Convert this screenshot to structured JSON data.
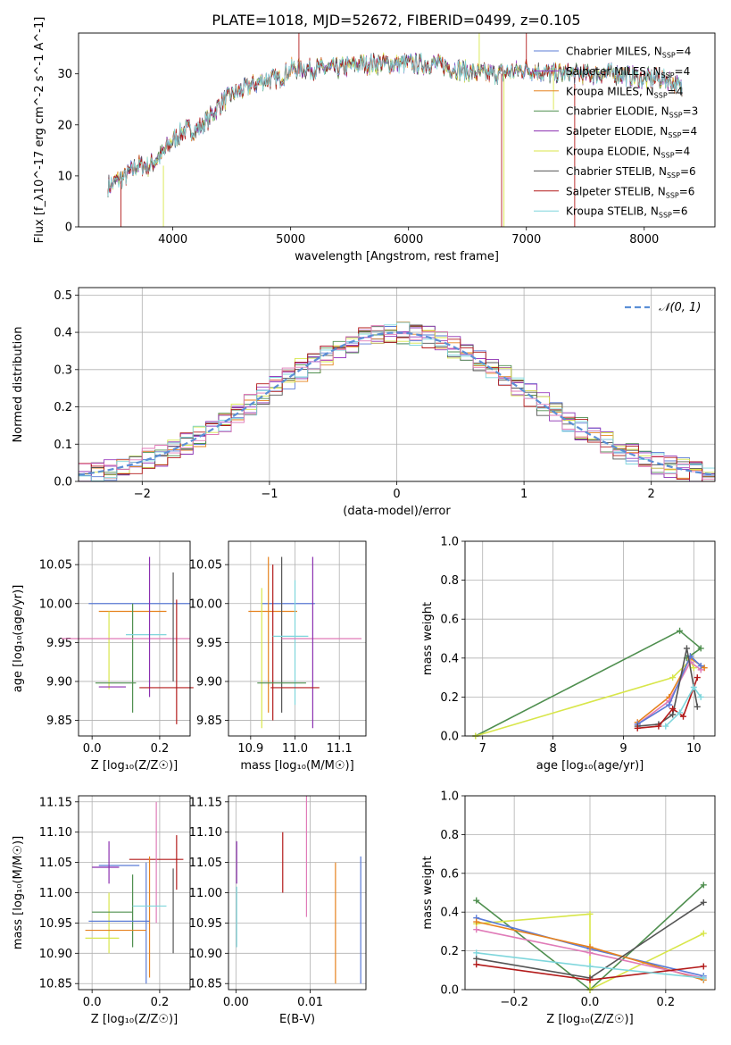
{
  "figure": {
    "title": "PLATE=1018, MJD=52672, FIBERID=0499, z=0.105"
  },
  "colors": {
    "Chabrier MILES": "#5b7bd6",
    "Salpeter MILES": "#9b3fbf",
    "Kroupa MILES": "#e6821e",
    "Chabrier ELODIE": "#4f8f4f",
    "Salpeter ELODIE": "#8b2fb0",
    "Kroupa ELODIE": "#d8e64a",
    "Chabrier STELIB": "#555555",
    "Salpeter STELIB": "#b31b1b",
    "Kroupa STELIB": "#7fd6dc",
    "pink": "#e07bb8",
    "gaussian": "#5b8fd6"
  },
  "chart_data": [
    {
      "id": "spectrum",
      "type": "line",
      "title": "PLATE=1018, MJD=52672, FIBERID=0499, z=0.105",
      "xlabel": "wavelength [Angstrom, rest frame]",
      "ylabel": "Flux [f_λ10^-17 erg cm^-2 s^-1 A^-1]",
      "xlim": [
        3200,
        8600
      ],
      "ylim": [
        0,
        38
      ],
      "xticks": [
        "4000",
        "5000",
        "6000",
        "7000",
        "8000"
      ],
      "yticks": [
        "0",
        "10",
        "20",
        "30"
      ],
      "legend": [
        "Chabrier MILES, N_SSP=4",
        "Salpeter MILES, N_SSP=4",
        "Kroupa MILES, N_SSP=4",
        "Chabrier ELODIE, N_SSP=3",
        "Salpeter ELODIE, N_SSP=4",
        "Kroupa ELODIE, N_SSP=4",
        "Chabrier STELIB, N_SSP=6",
        "Salpeter STELIB, N_SSP=6",
        "Kroupa STELIB, N_SSP=6"
      ],
      "legend_placement": "right",
      "continuum_x": [
        3450,
        3600,
        3700,
        3800,
        3900,
        4000,
        4100,
        4200,
        4300,
        4400,
        4500,
        4600,
        4700,
        4800,
        4900,
        5000,
        5200,
        5400,
        5600,
        5800,
        6000,
        6200,
        6400,
        6600,
        6800,
        7000,
        7200,
        7400,
        7600,
        7800,
        8000,
        8200,
        8320
      ],
      "continuum_y": [
        8,
        10,
        12,
        12,
        14,
        17,
        19,
        19,
        21,
        24,
        26,
        27,
        28,
        29,
        29,
        31,
        31,
        31,
        32,
        32,
        32,
        32,
        31,
        30,
        30,
        31,
        30,
        30,
        30,
        30,
        29,
        29,
        27
      ]
    },
    {
      "id": "residuals",
      "type": "line",
      "xlabel": "(data-model)/error",
      "ylabel": "Normed distribution",
      "xlim": [
        -2.5,
        2.5
      ],
      "ylim": [
        0,
        0.52
      ],
      "xticks": [
        "−2",
        "−1",
        "0",
        "1",
        "2"
      ],
      "yticks": [
        "0.0",
        "0.1",
        "0.2",
        "0.3",
        "0.4",
        "0.5"
      ],
      "legend": [
        "𝒩(0, 1)"
      ],
      "legend_placement": "top-right",
      "grid": true
    },
    {
      "id": "age-vs-Z",
      "type": "scatter",
      "xlabel": "Z [log10(Z/Z☉)]",
      "ylabel": "age [log10(age/yr)]",
      "xlim": [
        -0.04,
        0.29
      ],
      "ylim": [
        9.83,
        10.08
      ],
      "xticks": [
        "0.0",
        "0.2"
      ],
      "yticks": [
        "9.85",
        "9.90",
        "9.95",
        "10.00",
        "10.05"
      ],
      "grid": true,
      "points": [
        {
          "color": "Chabrier MILES",
          "x": 0.14,
          "xe": 0.15,
          "y": 10.0,
          "ye": 0.0
        },
        {
          "color": "Kroupa MILES",
          "x": 0.12,
          "xe": 0.1,
          "y": 9.99,
          "ye": 0.0
        },
        {
          "color": "Kroupa ELODIE",
          "x": 0.05,
          "xe": 0.0,
          "y": 9.94,
          "ye": 0.05
        },
        {
          "color": "Chabrier ELODIE",
          "x": 0.12,
          "xe": 0.0,
          "y": 9.93,
          "ye": 0.07
        },
        {
          "color": "Kroupa STELIB",
          "x": 0.16,
          "xe": 0.06,
          "y": 9.96,
          "ye": 0.0
        },
        {
          "color": "pink",
          "x": 0.1,
          "xe": 0.19,
          "y": 9.955,
          "ye": 0.0
        },
        {
          "color": "Salpeter ELODIE",
          "x": 0.17,
          "xe": 0.0,
          "y": 9.97,
          "ye": 0.09
        },
        {
          "color": "Chabrier STELIB",
          "x": 0.24,
          "xe": 0.0,
          "y": 9.97,
          "ye": 0.07
        },
        {
          "color": "Salpeter STELIB",
          "x": 0.25,
          "xe": 0.0,
          "y": 9.925,
          "ye": 0.08
        },
        {
          "color": "Chabrier ELODIE",
          "x": 0.07,
          "xe": 0.06,
          "y": 9.898,
          "ye": 0.0
        },
        {
          "color": "Salpeter ELODIE",
          "x": 0.06,
          "xe": 0.04,
          "y": 9.893,
          "ye": 0.0
        },
        {
          "color": "Salpeter STELIB",
          "x": 0.22,
          "xe": 0.08,
          "y": 9.892,
          "ye": 0.0
        }
      ]
    },
    {
      "id": "age-vs-mass",
      "type": "scatter",
      "xlabel": "mass [log10(M/M☉)]",
      "xlim": [
        10.85,
        11.16
      ],
      "ylim": [
        9.83,
        10.08
      ],
      "xticks": [
        "10.9",
        "11.0",
        "11.1"
      ],
      "yticks": [
        "9.85",
        "9.90",
        "9.95",
        "10.00",
        "10.05"
      ],
      "grid": true,
      "points": [
        {
          "color": "Chabrier MILES",
          "x": 10.985,
          "xe": 0.06,
          "y": 10.0,
          "ye": 0.0
        },
        {
          "color": "Kroupa MILES",
          "x": 10.95,
          "xe": 0.055,
          "y": 9.99,
          "ye": 0.0
        },
        {
          "color": "Kroupa MILES",
          "x": 10.94,
          "xe": 0.0,
          "y": 9.96,
          "ye": 0.1
        },
        {
          "color": "Salpeter STELIB",
          "x": 10.95,
          "xe": 0.0,
          "y": 9.95,
          "ye": 0.1
        },
        {
          "color": "Chabrier STELIB",
          "x": 10.97,
          "xe": 0.0,
          "y": 9.96,
          "ye": 0.1
        },
        {
          "color": "Kroupa ELODIE",
          "x": 10.925,
          "xe": 0.0,
          "y": 9.93,
          "ye": 0.09
        },
        {
          "color": "Kroupa STELIB",
          "x": 11.0,
          "xe": 0.0,
          "y": 9.95,
          "ye": 0.08
        },
        {
          "color": "pink",
          "x": 11.06,
          "xe": 0.09,
          "y": 9.955,
          "ye": 0.0
        },
        {
          "color": "Kroupa STELIB",
          "x": 10.99,
          "xe": 0.04,
          "y": 9.958,
          "ye": 0.0
        },
        {
          "color": "Salpeter ELODIE",
          "x": 11.04,
          "xe": 0.0,
          "y": 9.95,
          "ye": 0.11
        },
        {
          "color": "Chabrier ELODIE",
          "x": 10.97,
          "xe": 0.055,
          "y": 9.898,
          "ye": 0.0
        },
        {
          "color": "Salpeter STELIB",
          "x": 11.0,
          "xe": 0.055,
          "y": 9.892,
          "ye": 0.0
        }
      ]
    },
    {
      "id": "weight-vs-age",
      "type": "line",
      "xlabel": "age [log10(age/yr)]",
      "ylabel": "mass weight",
      "xlim": [
        6.75,
        10.3
      ],
      "ylim": [
        0,
        1.0
      ],
      "xticks": [
        "7",
        "8",
        "9",
        "10"
      ],
      "yticks": [
        "0.0",
        "0.2",
        "0.4",
        "0.6",
        "0.8",
        "1.0"
      ],
      "grid": true,
      "series": [
        {
          "color": "Chabrier ELODIE",
          "x": [
            6.9,
            9.8,
            10.1,
            9.9
          ],
          "y": [
            0.0,
            0.54,
            0.45,
            0.4
          ]
        },
        {
          "color": "Kroupa ELODIE",
          "x": [
            6.9,
            9.7,
            9.95,
            10.0
          ],
          "y": [
            0.0,
            0.3,
            0.39,
            0.35
          ]
        },
        {
          "color": "Kroupa MILES",
          "x": [
            9.2,
            9.65,
            9.95,
            10.15
          ],
          "y": [
            0.07,
            0.2,
            0.4,
            0.35
          ]
        },
        {
          "color": "pink",
          "x": [
            9.2,
            9.65,
            9.95,
            10.1
          ],
          "y": [
            0.06,
            0.18,
            0.38,
            0.34
          ]
        },
        {
          "color": "Chabrier MILES",
          "x": [
            9.2,
            9.65,
            9.95,
            10.1
          ],
          "y": [
            0.06,
            0.16,
            0.41,
            0.36
          ]
        },
        {
          "color": "Chabrier STELIB",
          "x": [
            9.2,
            9.5,
            9.7,
            9.9,
            10.05
          ],
          "y": [
            0.05,
            0.06,
            0.11,
            0.45,
            0.15
          ]
        },
        {
          "color": "Salpeter STELIB",
          "x": [
            9.2,
            9.5,
            9.7,
            9.85,
            10.05
          ],
          "y": [
            0.04,
            0.05,
            0.14,
            0.1,
            0.3
          ]
        },
        {
          "color": "Kroupa STELIB",
          "x": [
            9.6,
            9.8,
            10.0,
            10.1
          ],
          "y": [
            0.05,
            0.12,
            0.25,
            0.2
          ]
        }
      ]
    },
    {
      "id": "mass-vs-Z",
      "type": "scatter",
      "xlabel": "Z [log10(Z/Z☉)]",
      "ylabel": "mass [log10(M/M☉)]",
      "xlim": [
        -0.04,
        0.29
      ],
      "ylim": [
        10.84,
        11.16
      ],
      "xticks": [
        "0.0",
        "0.2"
      ],
      "yticks": [
        "10.85",
        "10.90",
        "10.95",
        "11.00",
        "11.05",
        "11.10",
        "11.15"
      ],
      "grid": true,
      "points": [
        {
          "color": "Salpeter STELIB",
          "x": 0.19,
          "xe": 0.08,
          "y": 11.055,
          "ye": 0.0
        },
        {
          "color": "Chabrier MILES",
          "x": 0.08,
          "xe": 0.06,
          "y": 11.045,
          "ye": 0.0
        },
        {
          "color": "Salpeter ELODIE",
          "x": 0.04,
          "xe": 0.04,
          "y": 11.042,
          "ye": 0.0
        },
        {
          "color": "Salpeter ELODIE",
          "x": 0.05,
          "xe": 0.0,
          "y": 11.05,
          "ye": 0.035
        },
        {
          "color": "Kroupa ELODIE",
          "x": 0.05,
          "xe": 0.0,
          "y": 10.95,
          "ye": 0.05
        },
        {
          "color": "pink",
          "x": 0.19,
          "xe": 0.0,
          "y": 11.05,
          "ye": 0.1
        },
        {
          "color": "Chabrier ELODIE",
          "x": 0.12,
          "xe": 0.0,
          "y": 10.97,
          "ye": 0.06
        },
        {
          "color": "Chabrier STELIB",
          "x": 0.24,
          "xe": 0.0,
          "y": 10.97,
          "ye": 0.07
        },
        {
          "color": "Kroupa MILES",
          "x": 0.17,
          "xe": 0.0,
          "y": 10.96,
          "ye": 0.1
        },
        {
          "color": "Chabrier MILES",
          "x": 0.16,
          "xe": 0.0,
          "y": 10.95,
          "ye": 0.1
        },
        {
          "color": "Salpeter STELIB",
          "x": 0.25,
          "xe": 0.0,
          "y": 11.05,
          "ye": 0.045
        },
        {
          "color": "Kroupa STELIB",
          "x": 0.17,
          "xe": 0.05,
          "y": 10.978,
          "ye": 0.0
        },
        {
          "color": "Chabrier ELODIE",
          "x": 0.06,
          "xe": 0.06,
          "y": 10.968,
          "ye": 0.0
        },
        {
          "color": "Chabrier MILES",
          "x": 0.08,
          "xe": 0.09,
          "y": 10.953,
          "ye": 0.0
        },
        {
          "color": "Kroupa MILES",
          "x": 0.07,
          "xe": 0.09,
          "y": 10.938,
          "ye": 0.0
        },
        {
          "color": "Kroupa ELODIE",
          "x": 0.03,
          "xe": 0.05,
          "y": 10.925,
          "ye": 0.0
        }
      ]
    },
    {
      "id": "mass-vs-ebv",
      "type": "scatter",
      "xlabel": "E(B-V)",
      "xlim": [
        -0.001,
        0.0175
      ],
      "ylim": [
        10.84,
        11.16
      ],
      "xticks": [
        "0.00",
        "0.01"
      ],
      "yticks": [
        "10.85",
        "10.90",
        "10.95",
        "11.00",
        "11.05",
        "11.10",
        "11.15"
      ],
      "grid": true,
      "points": [
        {
          "color": "Salpeter ELODIE",
          "x": 0.0001,
          "xe": 0.0,
          "y": 11.05,
          "ye": 0.035
        },
        {
          "color": "Kroupa STELIB",
          "x": 0.0001,
          "xe": 0.0,
          "y": 10.96,
          "ye": 0.05
        },
        {
          "color": "Salpeter STELIB",
          "x": 0.0063,
          "xe": 0.0,
          "y": 11.05,
          "ye": 0.05
        },
        {
          "color": "pink",
          "x": 0.0095,
          "xe": 0.0,
          "y": 11.06,
          "ye": 0.1
        },
        {
          "color": "Kroupa MILES",
          "x": 0.0134,
          "xe": 0.0,
          "y": 10.95,
          "ye": 0.1
        },
        {
          "color": "Chabrier MILES",
          "x": 0.0168,
          "xe": 0.0,
          "y": 10.955,
          "ye": 0.105
        }
      ]
    },
    {
      "id": "weight-vs-Z",
      "type": "line",
      "xlabel": "Z [log10(Z/Z☉)]",
      "ylabel": "mass weight",
      "xlim": [
        -0.33,
        0.33
      ],
      "ylim": [
        0,
        1.0
      ],
      "xticks": [
        "−0.2",
        "0.0",
        "0.2"
      ],
      "yticks": [
        "0.0",
        "0.2",
        "0.4",
        "0.6",
        "0.8",
        "1.0"
      ],
      "grid": true,
      "series": [
        {
          "color": "Chabrier ELODIE",
          "x": [
            -0.3,
            0.0,
            0.3
          ],
          "y": [
            0.46,
            0.0,
            0.54
          ]
        },
        {
          "color": "Kroupa ELODIE",
          "x": [
            -0.3,
            0.0,
            0.0,
            0.3
          ],
          "y": [
            0.34,
            0.39,
            0.0,
            0.29
          ]
        },
        {
          "color": "Chabrier MILES",
          "x": [
            -0.3,
            0.0,
            0.3
          ],
          "y": [
            0.37,
            0.21,
            0.07
          ]
        },
        {
          "color": "Kroupa MILES",
          "x": [
            -0.3,
            0.0,
            0.3
          ],
          "y": [
            0.35,
            0.22,
            0.05
          ]
        },
        {
          "color": "pink",
          "x": [
            -0.3,
            0.0,
            0.3
          ],
          "y": [
            0.31,
            0.19,
            0.06
          ]
        },
        {
          "color": "Chabrier STELIB",
          "x": [
            -0.3,
            0.0,
            0.3
          ],
          "y": [
            0.16,
            0.06,
            0.45
          ]
        },
        {
          "color": "Salpeter STELIB",
          "x": [
            -0.3,
            0.0,
            0.3
          ],
          "y": [
            0.13,
            0.05,
            0.12
          ]
        },
        {
          "color": "Kroupa STELIB",
          "x": [
            -0.3,
            0.0,
            0.3
          ],
          "y": [
            0.19,
            0.12,
            0.06
          ]
        }
      ]
    }
  ]
}
